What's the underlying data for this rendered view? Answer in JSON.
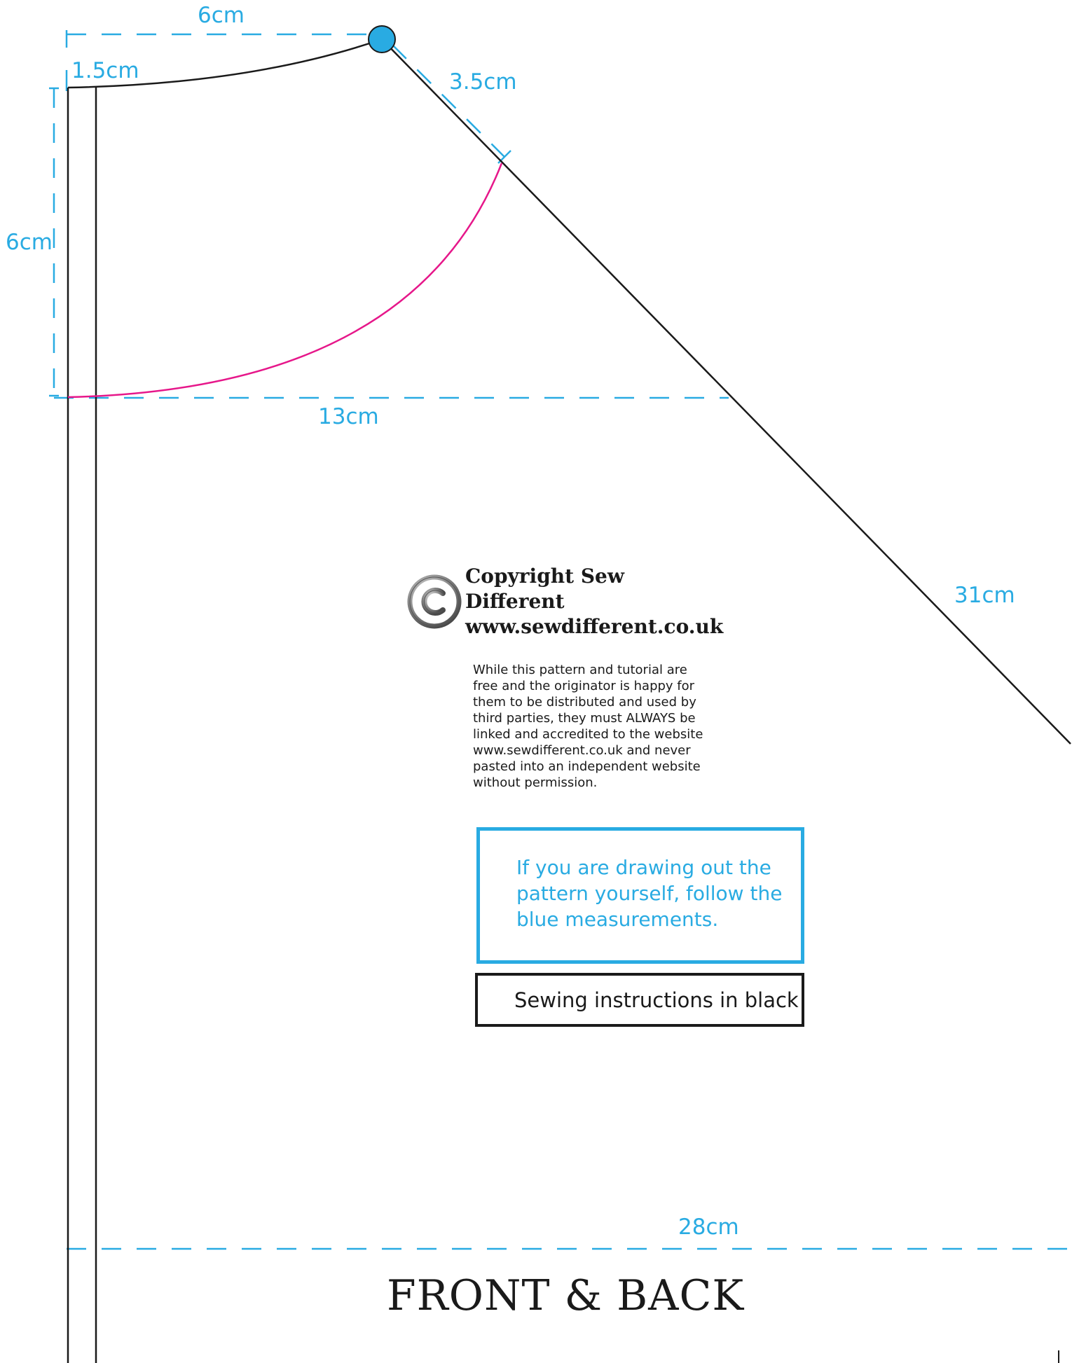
{
  "measurements": {
    "top_width": "6cm",
    "seam_allowance": "1.5cm",
    "neck_depth": "6cm",
    "shoulder": "3.5cm",
    "chest_width": "13cm",
    "side_length": "31cm",
    "hem_width": "28cm"
  },
  "title": {
    "main": "FRONT & BACK"
  },
  "copyright": {
    "logo_icon": "copyright-icon",
    "line1": "Copyright Sew Different",
    "line2": "www.sewdifferent.co.uk",
    "body": "While this pattern and tutorial are free and the originator is happy for them to be distributed and used by third parties, they must ALWAYS be linked and accredited to the website www.sewdifferent.co.uk and never pasted into an independent website without permission."
  },
  "notes": {
    "blue_note": "If you are drawing out the pattern yourself, follow the blue measurements.",
    "black_note": "Sewing instructions in black"
  },
  "colors": {
    "measure_blue": "#29abe2",
    "neckline_pink": "#e6178a",
    "pattern_black": "#1a1a1a"
  }
}
